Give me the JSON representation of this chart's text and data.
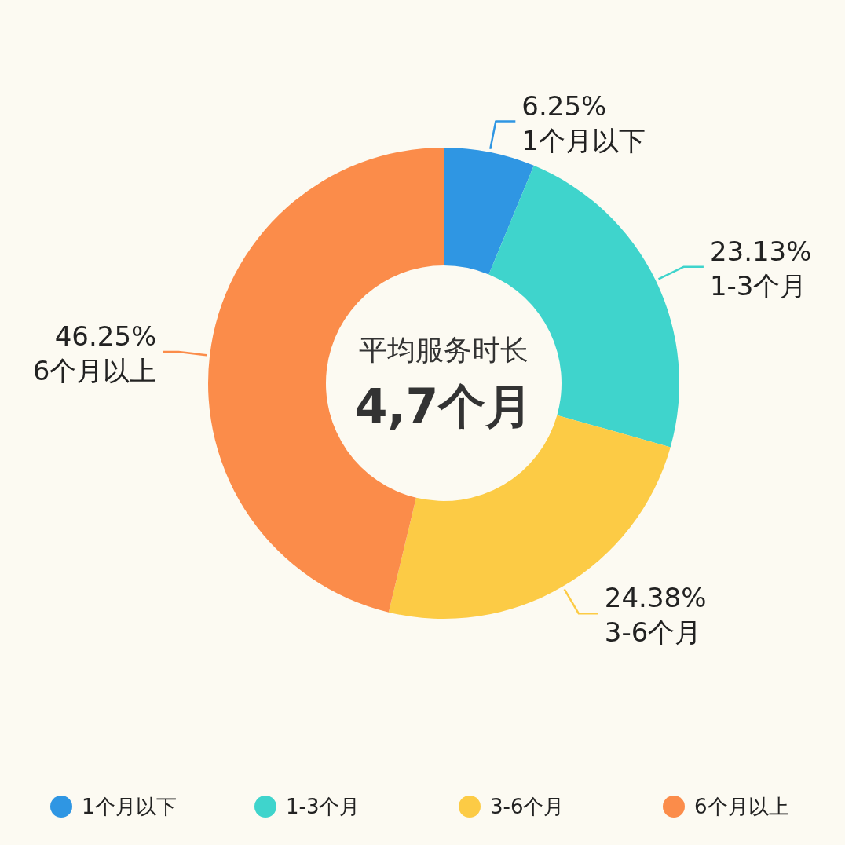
{
  "chart_data": {
    "type": "donut",
    "categories": [
      "1个月以下",
      "1-3个月",
      "3-6个月",
      "6个月以上"
    ],
    "values": [
      6.25,
      23.13,
      24.38,
      46.25
    ],
    "colors": [
      "#2f96e3",
      "#3fd4cc",
      "#fccb45",
      "#fb8c4a"
    ],
    "value_labels": [
      "6.25%",
      "23.13%",
      "24.38%",
      "46.25%"
    ],
    "annotations": [
      "平均服务时长",
      "4,7个月"
    ],
    "legend": "bottom"
  }
}
